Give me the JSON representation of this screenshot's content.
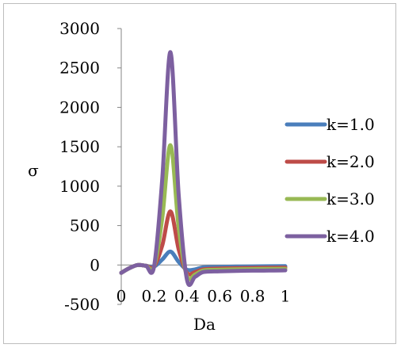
{
  "chart_data": {
    "type": "line",
    "title": "",
    "xlabel": "Da",
    "ylabel": "σ",
    "xlim": [
      0,
      1
    ],
    "ylim": [
      -500,
      3000
    ],
    "x_ticks": [
      "0",
      "0.2",
      "0.4",
      "0.6",
      "0.8",
      "1"
    ],
    "y_ticks": [
      "3000",
      "2500",
      "2000",
      "1500",
      "1000",
      "500",
      "0",
      "-500"
    ],
    "grid": false,
    "legend_position": "right",
    "x": [
      0,
      0.05,
      0.1,
      0.15,
      0.2,
      0.25,
      0.3,
      0.35,
      0.4,
      0.45,
      0.5,
      0.6,
      0.7,
      0.8,
      0.9,
      1.0
    ],
    "series": [
      {
        "name": "k=1.0",
        "color": "#4a7ebb",
        "values": [
          -100,
          -40,
          0,
          -10,
          -20,
          70,
          170,
          40,
          -60,
          -55,
          -30,
          -25,
          -20,
          -18,
          -16,
          -15
        ]
      },
      {
        "name": "k=2.0",
        "color": "#be4b48",
        "values": [
          -100,
          -40,
          0,
          -10,
          -20,
          250,
          680,
          200,
          -100,
          -90,
          -55,
          -45,
          -40,
          -37,
          -35,
          -33
        ]
      },
      {
        "name": "k=3.0",
        "color": "#98b954",
        "values": [
          -100,
          -40,
          0,
          -10,
          -20,
          600,
          1520,
          480,
          -140,
          -120,
          -70,
          -60,
          -55,
          -52,
          -50,
          -48
        ]
      },
      {
        "name": "k=4.0",
        "color": "#7d60a0",
        "values": [
          -100,
          -40,
          0,
          -10,
          -20,
          1100,
          2700,
          900,
          -180,
          -150,
          -90,
          -80,
          -75,
          -72,
          -70,
          -68
        ]
      }
    ]
  }
}
